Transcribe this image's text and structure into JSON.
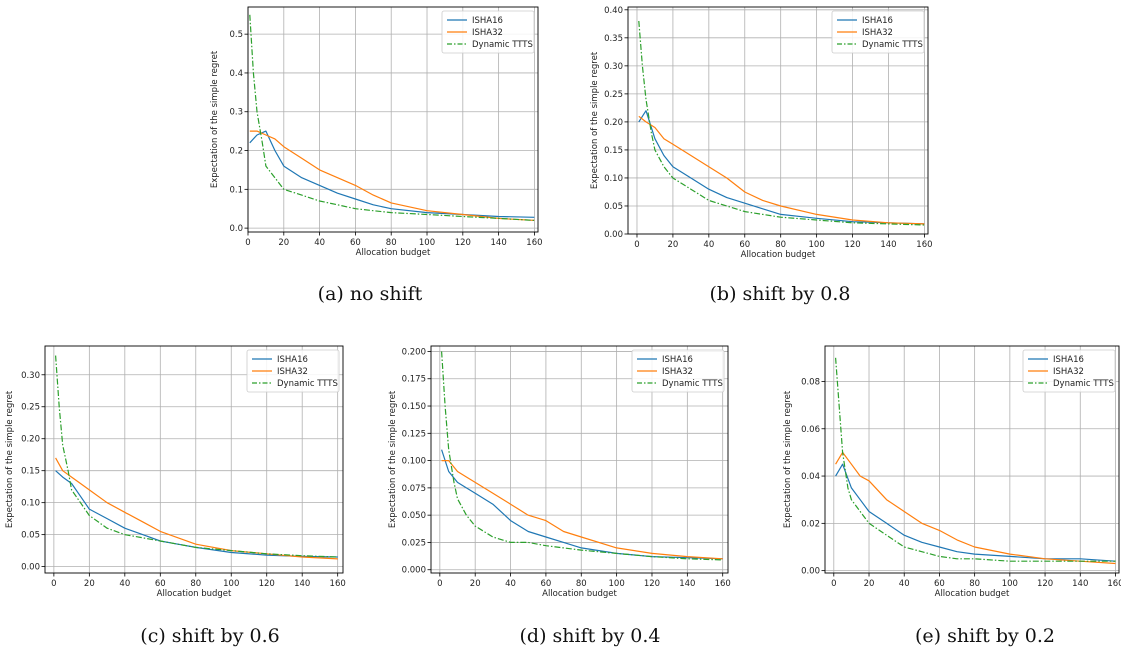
{
  "colors": {
    "ISHA16": "#1f77b4",
    "ISHA32": "#ff7f0e",
    "Dynamic TTTS": "#2ca02c"
  },
  "legend_entries": [
    "ISHA16",
    "ISHA32",
    "Dynamic TTTS"
  ],
  "chart_data": [
    {
      "type": "line",
      "caption": "(a) no shift",
      "xlabel": "Allocation budget",
      "ylabel": "Expectation of the simple regret",
      "xlim": [
        0,
        162
      ],
      "ylim": [
        -0.01,
        0.57
      ],
      "xticks": [
        0,
        20,
        40,
        60,
        80,
        100,
        120,
        140,
        160
      ],
      "xtick_labels": [
        "0",
        "20",
        "40",
        "60",
        "80",
        "100",
        "120",
        "140",
        "160"
      ],
      "yticks": [
        0.0,
        0.1,
        0.2,
        0.3,
        0.4,
        0.5
      ],
      "ytick_labels": [
        "0.0",
        "0.1",
        "0.2",
        "0.3",
        "0.4",
        "0.5"
      ],
      "grid": true,
      "legend": "top-right",
      "series": [
        {
          "name": "ISHA16",
          "style": "solid",
          "x": [
            1,
            5,
            10,
            15,
            20,
            30,
            40,
            50,
            60,
            70,
            80,
            100,
            120,
            140,
            160
          ],
          "y": [
            0.22,
            0.24,
            0.25,
            0.2,
            0.16,
            0.13,
            0.11,
            0.09,
            0.075,
            0.06,
            0.05,
            0.04,
            0.035,
            0.03,
            0.028
          ]
        },
        {
          "name": "ISHA32",
          "style": "solid",
          "x": [
            1,
            5,
            10,
            15,
            20,
            30,
            40,
            50,
            60,
            70,
            80,
            100,
            120,
            140,
            160
          ],
          "y": [
            0.25,
            0.25,
            0.24,
            0.23,
            0.21,
            0.18,
            0.15,
            0.13,
            0.11,
            0.085,
            0.065,
            0.045,
            0.035,
            0.025,
            0.02
          ]
        },
        {
          "name": "Dynamic TTTS",
          "style": "dashdot",
          "x": [
            1,
            3,
            5,
            8,
            10,
            15,
            20,
            30,
            40,
            50,
            60,
            70,
            80,
            100,
            120,
            140,
            160
          ],
          "y": [
            0.55,
            0.4,
            0.3,
            0.22,
            0.16,
            0.13,
            0.1,
            0.085,
            0.07,
            0.06,
            0.05,
            0.045,
            0.04,
            0.035,
            0.03,
            0.025,
            0.02
          ]
        }
      ]
    },
    {
      "type": "line",
      "caption": "(b) shift by 0.8",
      "xlabel": "Allocation budget",
      "ylabel": "Expectation of the simple regret",
      "xlim": [
        -5,
        162
      ],
      "ylim": [
        0,
        0.405
      ],
      "xticks": [
        0,
        20,
        40,
        60,
        80,
        100,
        120,
        140,
        160
      ],
      "xtick_labels": [
        "0",
        "20",
        "40",
        "60",
        "80",
        "100",
        "120",
        "140",
        "160"
      ],
      "yticks": [
        0.0,
        0.05,
        0.1,
        0.15,
        0.2,
        0.25,
        0.3,
        0.35,
        0.4
      ],
      "ytick_labels": [
        "0.00",
        "0.05",
        "0.10",
        "0.15",
        "0.20",
        "0.25",
        "0.30",
        "0.35",
        "0.40"
      ],
      "grid": true,
      "legend": "top-right",
      "series": [
        {
          "name": "ISHA16",
          "style": "solid",
          "x": [
            1,
            5,
            10,
            15,
            20,
            30,
            40,
            50,
            60,
            70,
            80,
            100,
            120,
            140,
            160
          ],
          "y": [
            0.2,
            0.22,
            0.17,
            0.14,
            0.12,
            0.1,
            0.08,
            0.065,
            0.055,
            0.045,
            0.035,
            0.028,
            0.022,
            0.02,
            0.018
          ]
        },
        {
          "name": "ISHA32",
          "style": "solid",
          "x": [
            1,
            5,
            10,
            15,
            20,
            30,
            40,
            50,
            60,
            70,
            80,
            100,
            120,
            140,
            160
          ],
          "y": [
            0.21,
            0.2,
            0.19,
            0.17,
            0.16,
            0.14,
            0.12,
            0.1,
            0.075,
            0.06,
            0.05,
            0.035,
            0.025,
            0.02,
            0.018
          ]
        },
        {
          "name": "Dynamic TTTS",
          "style": "dashdot",
          "x": [
            1,
            3,
            5,
            8,
            10,
            15,
            20,
            30,
            40,
            50,
            60,
            70,
            80,
            100,
            120,
            140,
            160
          ],
          "y": [
            0.38,
            0.3,
            0.24,
            0.18,
            0.15,
            0.12,
            0.1,
            0.08,
            0.06,
            0.05,
            0.04,
            0.035,
            0.03,
            0.025,
            0.02,
            0.018,
            0.016
          ]
        }
      ]
    },
    {
      "type": "line",
      "caption": "(c) shift by 0.6",
      "xlabel": "Allocation budget",
      "ylabel": "Expectation of the simple regret",
      "xlim": [
        -5,
        163
      ],
      "ylim": [
        -0.01,
        0.345
      ],
      "xticks": [
        0,
        20,
        40,
        60,
        80,
        100,
        120,
        140,
        160
      ],
      "xtick_labels": [
        "0",
        "20",
        "40",
        "60",
        "80",
        "100",
        "120",
        "140",
        "160"
      ],
      "yticks": [
        0.0,
        0.05,
        0.1,
        0.15,
        0.2,
        0.25,
        0.3
      ],
      "ytick_labels": [
        "0.00",
        "0.05",
        "0.10",
        "0.15",
        "0.20",
        "0.25",
        "0.30"
      ],
      "grid": true,
      "legend": "top-right",
      "series": [
        {
          "name": "ISHA16",
          "style": "solid",
          "x": [
            1,
            5,
            10,
            15,
            20,
            30,
            40,
            50,
            60,
            70,
            80,
            100,
            120,
            140,
            160
          ],
          "y": [
            0.15,
            0.14,
            0.13,
            0.11,
            0.09,
            0.075,
            0.06,
            0.05,
            0.04,
            0.035,
            0.03,
            0.022,
            0.018,
            0.016,
            0.015
          ]
        },
        {
          "name": "ISHA32",
          "style": "solid",
          "x": [
            1,
            5,
            10,
            15,
            20,
            30,
            40,
            50,
            60,
            70,
            80,
            100,
            120,
            140,
            160
          ],
          "y": [
            0.17,
            0.15,
            0.14,
            0.13,
            0.12,
            0.1,
            0.085,
            0.07,
            0.055,
            0.045,
            0.035,
            0.025,
            0.02,
            0.015,
            0.012
          ]
        },
        {
          "name": "Dynamic TTTS",
          "style": "dashdot",
          "x": [
            1,
            3,
            5,
            8,
            10,
            15,
            20,
            30,
            40,
            50,
            60,
            70,
            80,
            100,
            120,
            140,
            160
          ],
          "y": [
            0.33,
            0.25,
            0.19,
            0.15,
            0.12,
            0.1,
            0.08,
            0.06,
            0.05,
            0.045,
            0.04,
            0.035,
            0.03,
            0.025,
            0.02,
            0.017,
            0.015
          ]
        }
      ]
    },
    {
      "type": "line",
      "caption": "(d) shift by 0.4",
      "xlabel": "Allocation budget",
      "ylabel": "Expectation of the simple regret",
      "xlim": [
        -5,
        163
      ],
      "ylim": [
        -0.003,
        0.205
      ],
      "xticks": [
        0,
        20,
        40,
        60,
        80,
        100,
        120,
        140,
        160
      ],
      "xtick_labels": [
        "0",
        "20",
        "40",
        "60",
        "80",
        "100",
        "120",
        "140",
        "160"
      ],
      "yticks": [
        0.0,
        0.025,
        0.05,
        0.075,
        0.1,
        0.125,
        0.15,
        0.175,
        0.2
      ],
      "ytick_labels": [
        "0.000",
        "0.025",
        "0.050",
        "0.075",
        "0.100",
        "0.125",
        "0.150",
        "0.175",
        "0.200"
      ],
      "grid": true,
      "legend": "top-right",
      "series": [
        {
          "name": "ISHA16",
          "style": "solid",
          "x": [
            1,
            5,
            10,
            15,
            20,
            30,
            40,
            50,
            60,
            70,
            80,
            100,
            120,
            140,
            160
          ],
          "y": [
            0.11,
            0.09,
            0.08,
            0.075,
            0.07,
            0.06,
            0.045,
            0.035,
            0.03,
            0.025,
            0.02,
            0.015,
            0.012,
            0.011,
            0.01
          ]
        },
        {
          "name": "ISHA32",
          "style": "solid",
          "x": [
            1,
            5,
            10,
            15,
            20,
            30,
            40,
            50,
            60,
            70,
            80,
            100,
            120,
            140,
            160
          ],
          "y": [
            0.1,
            0.1,
            0.09,
            0.085,
            0.08,
            0.07,
            0.06,
            0.05,
            0.045,
            0.035,
            0.03,
            0.02,
            0.015,
            0.012,
            0.01
          ]
        },
        {
          "name": "Dynamic TTTS",
          "style": "dashdot",
          "x": [
            1,
            3,
            5,
            8,
            10,
            15,
            20,
            30,
            40,
            50,
            60,
            70,
            80,
            100,
            120,
            140,
            160
          ],
          "y": [
            0.2,
            0.15,
            0.11,
            0.08,
            0.065,
            0.05,
            0.04,
            0.03,
            0.025,
            0.025,
            0.022,
            0.02,
            0.018,
            0.015,
            0.012,
            0.01,
            0.009
          ]
        }
      ]
    },
    {
      "type": "line",
      "caption": "(e) shift by 0.2",
      "xlabel": "Allocation budget",
      "ylabel": "Expectation of the simple regret",
      "xlim": [
        -5,
        162
      ],
      "ylim": [
        -0.001,
        0.095
      ],
      "xticks": [
        0,
        20,
        40,
        60,
        80,
        100,
        120,
        140,
        160
      ],
      "xtick_labels": [
        "0",
        "20",
        "40",
        "60",
        "80",
        "100",
        "120",
        "140",
        "160"
      ],
      "yticks": [
        0.0,
        0.02,
        0.04,
        0.06,
        0.08
      ],
      "ytick_labels": [
        "0.00",
        "0.02",
        "0.04",
        "0.06",
        "0.08"
      ],
      "grid": true,
      "legend": "top-right",
      "series": [
        {
          "name": "ISHA16",
          "style": "solid",
          "x": [
            1,
            5,
            10,
            15,
            20,
            30,
            40,
            50,
            60,
            70,
            80,
            100,
            120,
            140,
            160
          ],
          "y": [
            0.04,
            0.045,
            0.035,
            0.03,
            0.025,
            0.02,
            0.015,
            0.012,
            0.01,
            0.008,
            0.007,
            0.006,
            0.005,
            0.005,
            0.004
          ]
        },
        {
          "name": "ISHA32",
          "style": "solid",
          "x": [
            1,
            5,
            10,
            15,
            20,
            30,
            40,
            50,
            60,
            70,
            80,
            100,
            120,
            140,
            160
          ],
          "y": [
            0.045,
            0.05,
            0.045,
            0.04,
            0.038,
            0.03,
            0.025,
            0.02,
            0.017,
            0.013,
            0.01,
            0.007,
            0.005,
            0.004,
            0.003
          ]
        },
        {
          "name": "Dynamic TTTS",
          "style": "dashdot",
          "x": [
            1,
            3,
            5,
            8,
            10,
            15,
            20,
            30,
            40,
            50,
            60,
            70,
            80,
            100,
            120,
            140,
            160
          ],
          "y": [
            0.09,
            0.07,
            0.05,
            0.035,
            0.03,
            0.025,
            0.02,
            0.015,
            0.01,
            0.008,
            0.006,
            0.005,
            0.005,
            0.004,
            0.004,
            0.004,
            0.004
          ]
        }
      ]
    }
  ]
}
